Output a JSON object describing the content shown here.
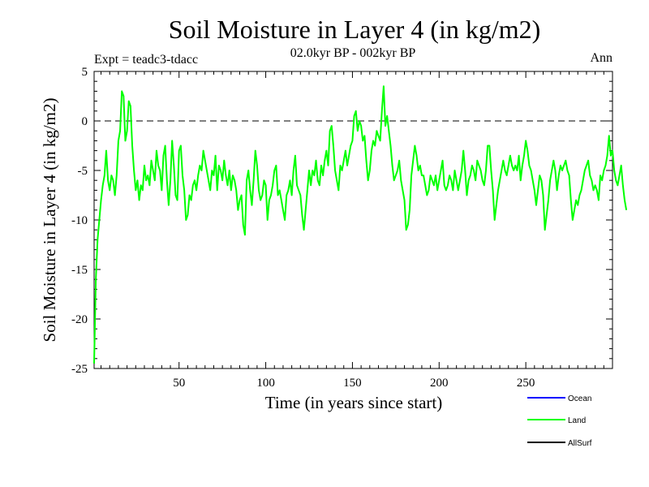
{
  "chart_data": {
    "type": "line",
    "title": "Soil Moisture in Layer 4 (in kg/m2)",
    "subtitle": "02.0kyr BP - 002kyr BP",
    "expt_label": "Expt = teadc3-tdacc",
    "season_label": "Ann",
    "xlabel": "Time (in years since start)",
    "ylabel": "Soil Moisture in Layer 4 (in kg/m2)",
    "xlim": [
      1,
      300
    ],
    "ylim": [
      -25,
      5
    ],
    "x_ticks": [
      50,
      100,
      150,
      200,
      250
    ],
    "x_tick_labels": [
      "50",
      "100",
      "150",
      "200",
      "250"
    ],
    "y_ticks": [
      5,
      0,
      -5,
      -10,
      -15,
      -20,
      -25
    ],
    "y_tick_labels": [
      "5",
      "0",
      "-5",
      "-10",
      "-15",
      "-20",
      "-25"
    ],
    "reference_line": 0,
    "legend": [
      {
        "name": "Ocean",
        "color": "#0000ff"
      },
      {
        "name": "Land",
        "color": "#00ff00"
      },
      {
        "name": "AllSurf",
        "color": "#000000"
      }
    ],
    "series": [
      {
        "name": "Land",
        "color": "#00ff00",
        "x_start": 1,
        "x_step": 1,
        "values": [
          -24.5,
          -16,
          -12,
          -10,
          -8,
          -6.5,
          -5.5,
          -3,
          -6,
          -7,
          -5.5,
          -6,
          -7.5,
          -5.5,
          -2,
          -1,
          3,
          2.5,
          -2,
          -1,
          2,
          1.5,
          -2.5,
          -5,
          -7,
          -6,
          -8,
          -6.5,
          -7,
          -4.5,
          -6,
          -5.5,
          -6.5,
          -4,
          -5,
          -6,
          -3,
          -4.5,
          -5,
          -7,
          -3.5,
          -2.5,
          -6,
          -8.5,
          -6,
          -2,
          -4.5,
          -7.5,
          -8,
          -3,
          -2.5,
          -5.5,
          -7,
          -10,
          -9.5,
          -7.5,
          -8,
          -6.5,
          -6,
          -7,
          -5.5,
          -4.5,
          -5,
          -3,
          -4,
          -5,
          -6,
          -7,
          -5,
          -5.5,
          -3.5,
          -7,
          -4.5,
          -5,
          -6,
          -4,
          -5.5,
          -6.5,
          -5,
          -7,
          -5.5,
          -6,
          -7,
          -9,
          -8,
          -7.5,
          -10.5,
          -11.5,
          -6,
          -5,
          -7,
          -8.5,
          -6,
          -3,
          -4.5,
          -7,
          -8,
          -7.5,
          -6,
          -6.5,
          -10,
          -8,
          -7.5,
          -6.5,
          -5,
          -4.5,
          -7.5,
          -7,
          -8,
          -9,
          -10,
          -7.5,
          -7,
          -6,
          -7.5,
          -5,
          -3.5,
          -6.5,
          -7,
          -7.5,
          -9.5,
          -11,
          -9,
          -7,
          -5,
          -6.5,
          -5,
          -5.5,
          -4,
          -6,
          -6.5,
          -4.5,
          -5.5,
          -4,
          -3,
          -4.5,
          -1,
          -0.5,
          -2.5,
          -5,
          -6,
          -7,
          -4.5,
          -5,
          -4,
          -3,
          -4.5,
          -3.5,
          -2.5,
          -2,
          0.5,
          1,
          -1,
          0,
          -0.5,
          -2,
          -1.5,
          -4,
          -6,
          -5,
          -3,
          -2,
          -2.5,
          -1,
          -1.5,
          -2,
          1,
          3.5,
          -0.5,
          0.5,
          -1,
          -2.5,
          -4.5,
          -6,
          -5.5,
          -5,
          -4,
          -6,
          -7,
          -8,
          -11,
          -10.5,
          -9,
          -5.5,
          -4,
          -2.5,
          -3.5,
          -5,
          -4.5,
          -5.5,
          -5.5,
          -6.5,
          -7.5,
          -7,
          -5.5,
          -6,
          -6.5,
          -5.5,
          -7,
          -6,
          -5,
          -4,
          -6.5,
          -7,
          -6.5,
          -5.5,
          -6,
          -7,
          -5,
          -6,
          -7,
          -6,
          -5,
          -3,
          -5,
          -7.5,
          -6,
          -5.5,
          -4.5,
          -5,
          -6,
          -4,
          -4.5,
          -5,
          -6,
          -6.5,
          -5,
          -2.5,
          -2.5,
          -5,
          -7,
          -10,
          -8.5,
          -7,
          -6,
          -5,
          -4,
          -5,
          -5.5,
          -4.5,
          -3.5,
          -4.5,
          -5,
          -4.5,
          -5,
          -3.5,
          -6,
          -4.5,
          -3.5,
          -2,
          -3,
          -4.5,
          -5,
          -6,
          -7,
          -8.5,
          -7,
          -5.5,
          -6,
          -7.5,
          -11,
          -9.5,
          -8,
          -6,
          -5,
          -4,
          -5,
          -7,
          -5.5,
          -4.5,
          -5,
          -4.5,
          -4,
          -5,
          -5.5,
          -8,
          -10,
          -9,
          -8,
          -8.5,
          -7.5,
          -7,
          -6,
          -5,
          -4.5,
          -4,
          -5.5,
          -6,
          -7,
          -6.5,
          -7,
          -8,
          -5.5,
          -6,
          -5,
          -4.5,
          -3.5,
          -1.5,
          -3.5,
          -3,
          -5,
          -6,
          -6.5,
          -5.5,
          -4.5,
          -6.5,
          -8,
          -9
        ]
      }
    ]
  }
}
